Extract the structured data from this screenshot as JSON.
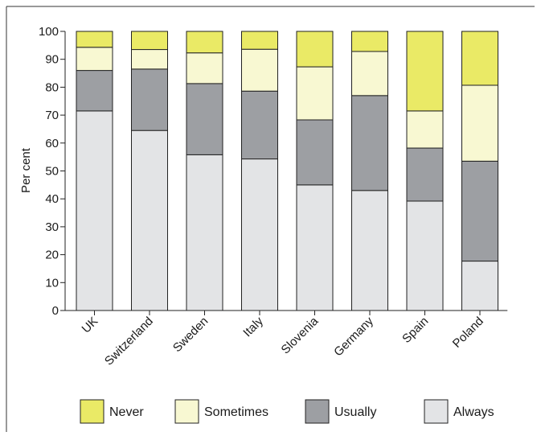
{
  "chart_data": {
    "type": "bar",
    "stacked": true,
    "categories": [
      "UK",
      "Switzerland",
      "Sweden",
      "Italy",
      "Slovenia",
      "Germany",
      "Spain",
      "Poland"
    ],
    "series": [
      {
        "name": "Always",
        "color": "#e3e4e6",
        "values": [
          71.5,
          64.5,
          55.8,
          54.3,
          45.0,
          43.0,
          39.2,
          17.7
        ]
      },
      {
        "name": "Usually",
        "color": "#9d9fa3",
        "values": [
          14.5,
          22.0,
          25.5,
          24.3,
          23.3,
          34.0,
          19.0,
          35.8
        ]
      },
      {
        "name": "Sometimes",
        "color": "#f8f8d2",
        "values": [
          8.3,
          7.0,
          11.0,
          15.0,
          19.0,
          15.8,
          13.3,
          27.2
        ]
      },
      {
        "name": "Never",
        "color": "#eaea66",
        "values": [
          5.7,
          6.5,
          7.7,
          6.4,
          12.7,
          7.2,
          28.5,
          19.3
        ]
      }
    ],
    "ylabel": "Per cent",
    "ylim": [
      0,
      100
    ],
    "yticks": [
      0,
      10,
      20,
      30,
      40,
      50,
      60,
      70,
      80,
      90,
      100
    ],
    "grid": false,
    "legend": {
      "placement": "bottom",
      "order": [
        "Never",
        "Sometimes",
        "Usually",
        "Always"
      ]
    }
  }
}
